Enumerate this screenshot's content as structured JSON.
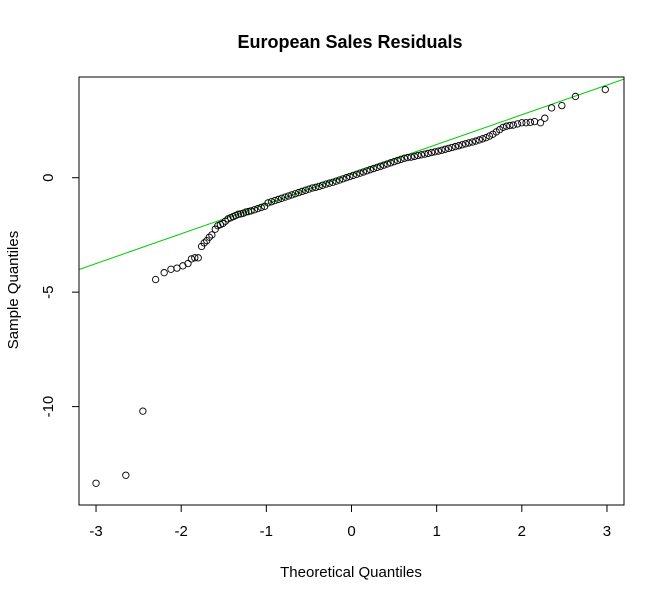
{
  "chart_data": {
    "type": "scatter",
    "title": "European Sales Residuals",
    "xlabel": "Theoretical Quantiles",
    "ylabel": "Sample Quantiles",
    "xlim": [
      -3.2,
      3.2
    ],
    "ylim": [
      -14.3,
      4.4
    ],
    "x_ticks": [
      -3,
      -2,
      -1,
      0,
      1,
      2,
      3
    ],
    "y_ticks": [
      -10,
      -5,
      0
    ],
    "grid": false,
    "legend": "none",
    "point_style": "open-circle",
    "reference_line": {
      "slope": 1.3,
      "intercept": 0.15,
      "color": "#00cc00"
    },
    "points": [
      [
        -3.0,
        -13.35
      ],
      [
        -2.65,
        -13.0
      ],
      [
        -2.45,
        -10.2
      ],
      [
        -2.3,
        -4.45
      ],
      [
        -2.2,
        -4.15
      ],
      [
        -2.12,
        -4.0
      ],
      [
        -2.05,
        -3.95
      ],
      [
        -1.98,
        -3.85
      ],
      [
        -1.92,
        -3.75
      ],
      [
        -1.88,
        -3.55
      ],
      [
        -1.84,
        -3.5
      ],
      [
        -1.8,
        -3.5
      ],
      [
        -1.76,
        -3.0
      ],
      [
        -1.73,
        -2.85
      ],
      [
        -1.7,
        -2.75
      ],
      [
        -1.67,
        -2.6
      ],
      [
        -1.64,
        -2.5
      ],
      [
        -1.6,
        -2.25
      ],
      [
        -1.57,
        -2.1
      ],
      [
        -1.54,
        -2.05
      ],
      [
        -1.51,
        -2.0
      ],
      [
        -1.48,
        -1.9
      ],
      [
        -1.45,
        -1.8
      ],
      [
        -1.42,
        -1.75
      ],
      [
        -1.39,
        -1.7
      ],
      [
        -1.36,
        -1.65
      ],
      [
        -1.33,
        -1.6
      ],
      [
        -1.3,
        -1.58
      ],
      [
        -1.27,
        -1.55
      ],
      [
        -1.24,
        -1.5
      ],
      [
        -1.21,
        -1.48
      ],
      [
        -1.18,
        -1.45
      ],
      [
        -1.14,
        -1.4
      ],
      [
        -1.1,
        -1.35
      ],
      [
        -1.06,
        -1.3
      ],
      [
        -1.02,
        -1.25
      ],
      [
        -0.98,
        -1.1
      ],
      [
        -0.94,
        -1.05
      ],
      [
        -0.9,
        -1.0
      ],
      [
        -0.86,
        -0.95
      ],
      [
        -0.82,
        -0.9
      ],
      [
        -0.78,
        -0.85
      ],
      [
        -0.74,
        -0.8
      ],
      [
        -0.7,
        -0.75
      ],
      [
        -0.66,
        -0.7
      ],
      [
        -0.62,
        -0.65
      ],
      [
        -0.58,
        -0.6
      ],
      [
        -0.54,
        -0.55
      ],
      [
        -0.5,
        -0.5
      ],
      [
        -0.46,
        -0.45
      ],
      [
        -0.42,
        -0.42
      ],
      [
        -0.38,
        -0.38
      ],
      [
        -0.34,
        -0.33
      ],
      [
        -0.3,
        -0.28
      ],
      [
        -0.26,
        -0.24
      ],
      [
        -0.22,
        -0.2
      ],
      [
        -0.18,
        -0.15
      ],
      [
        -0.14,
        -0.1
      ],
      [
        -0.1,
        -0.05
      ],
      [
        -0.06,
        0.0
      ],
      [
        -0.02,
        0.05
      ],
      [
        0.02,
        0.1
      ],
      [
        0.06,
        0.15
      ],
      [
        0.1,
        0.2
      ],
      [
        0.14,
        0.25
      ],
      [
        0.18,
        0.3
      ],
      [
        0.22,
        0.35
      ],
      [
        0.26,
        0.4
      ],
      [
        0.3,
        0.45
      ],
      [
        0.34,
        0.5
      ],
      [
        0.38,
        0.55
      ],
      [
        0.42,
        0.6
      ],
      [
        0.46,
        0.65
      ],
      [
        0.5,
        0.7
      ],
      [
        0.54,
        0.75
      ],
      [
        0.58,
        0.8
      ],
      [
        0.62,
        0.85
      ],
      [
        0.66,
        0.88
      ],
      [
        0.7,
        0.9
      ],
      [
        0.74,
        0.93
      ],
      [
        0.78,
        0.97
      ],
      [
        0.82,
        1.0
      ],
      [
        0.86,
        1.03
      ],
      [
        0.9,
        1.06
      ],
      [
        0.94,
        1.1
      ],
      [
        0.98,
        1.13
      ],
      [
        1.02,
        1.16
      ],
      [
        1.06,
        1.2
      ],
      [
        1.1,
        1.24
      ],
      [
        1.14,
        1.28
      ],
      [
        1.18,
        1.32
      ],
      [
        1.22,
        1.36
      ],
      [
        1.26,
        1.4
      ],
      [
        1.3,
        1.44
      ],
      [
        1.34,
        1.48
      ],
      [
        1.38,
        1.52
      ],
      [
        1.42,
        1.56
      ],
      [
        1.46,
        1.6
      ],
      [
        1.5,
        1.65
      ],
      [
        1.54,
        1.7
      ],
      [
        1.58,
        1.75
      ],
      [
        1.62,
        1.82
      ],
      [
        1.66,
        1.9
      ],
      [
        1.7,
        2.0
      ],
      [
        1.74,
        2.1
      ],
      [
        1.78,
        2.2
      ],
      [
        1.82,
        2.25
      ],
      [
        1.86,
        2.28
      ],
      [
        1.9,
        2.3
      ],
      [
        1.95,
        2.35
      ],
      [
        2.0,
        2.4
      ],
      [
        2.05,
        2.4
      ],
      [
        2.1,
        2.42
      ],
      [
        2.15,
        2.45
      ],
      [
        2.22,
        2.4
      ],
      [
        2.27,
        2.6
      ],
      [
        2.35,
        3.05
      ],
      [
        2.47,
        3.15
      ],
      [
        2.63,
        3.55
      ],
      [
        2.98,
        3.85
      ]
    ]
  }
}
